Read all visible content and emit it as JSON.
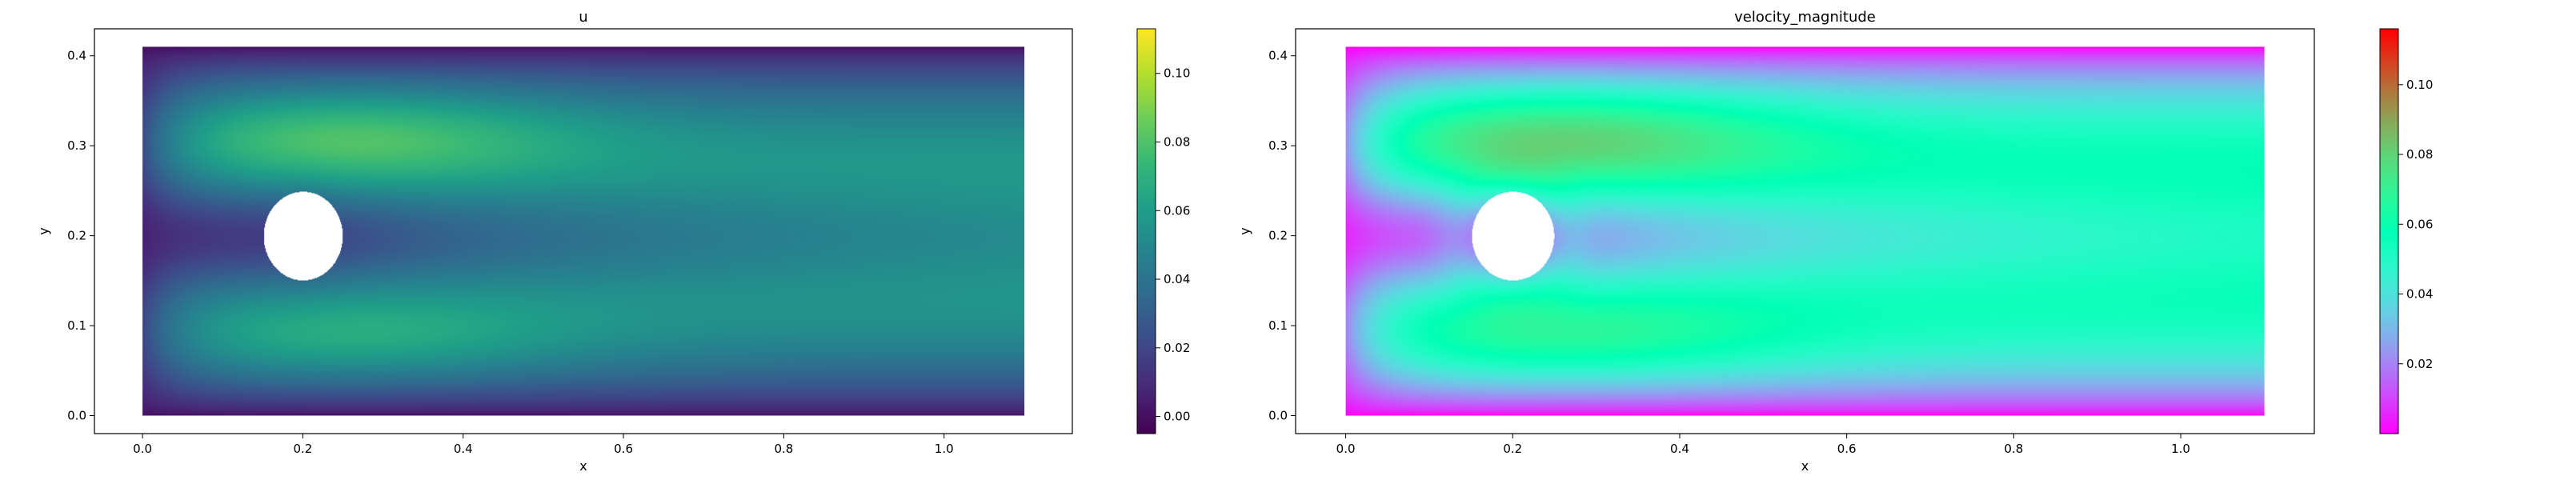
{
  "chart_data": [
    {
      "type": "heatmap",
      "title": "u",
      "xlabel": "x",
      "ylabel": "y",
      "xlim": [
        -0.06,
        1.16
      ],
      "ylim": [
        -0.02,
        0.43
      ],
      "xticks": [
        "0.0",
        "0.2",
        "0.4",
        "0.6",
        "0.8",
        "1.0"
      ],
      "yticks": [
        "0.0",
        "0.1",
        "0.2",
        "0.3",
        "0.4"
      ],
      "domain": {
        "x": [
          0.0,
          1.1
        ],
        "y": [
          0.0,
          0.41
        ]
      },
      "obstacle": {
        "shape": "circle",
        "center": [
          0.2,
          0.2
        ],
        "radius": 0.05
      },
      "colormap": "viridis",
      "colorbar": {
        "min": -0.005,
        "max": 0.113,
        "ticks": [
          "0.00",
          "0.02",
          "0.04",
          "0.06",
          "0.08",
          "0.10"
        ]
      },
      "field_range": [
        -0.005,
        0.113
      ]
    },
    {
      "type": "heatmap",
      "title": "velocity_magnitude",
      "xlabel": "x",
      "ylabel": "y",
      "xlim": [
        -0.06,
        1.16
      ],
      "ylim": [
        -0.02,
        0.43
      ],
      "xticks": [
        "0.0",
        "0.2",
        "0.4",
        "0.6",
        "0.8",
        "1.0"
      ],
      "yticks": [
        "0.0",
        "0.1",
        "0.2",
        "0.3",
        "0.4"
      ],
      "domain": {
        "x": [
          0.0,
          1.1
        ],
        "y": [
          0.0,
          0.41
        ]
      },
      "obstacle": {
        "shape": "circle",
        "center": [
          0.2,
          0.2
        ],
        "radius": 0.05
      },
      "colormap": "rainbow",
      "colorbar": {
        "min": 0.0,
        "max": 0.116,
        "ticks": [
          "0.02",
          "0.04",
          "0.06",
          "0.08",
          "0.10"
        ]
      },
      "field_range": [
        0.0,
        0.116
      ]
    }
  ]
}
